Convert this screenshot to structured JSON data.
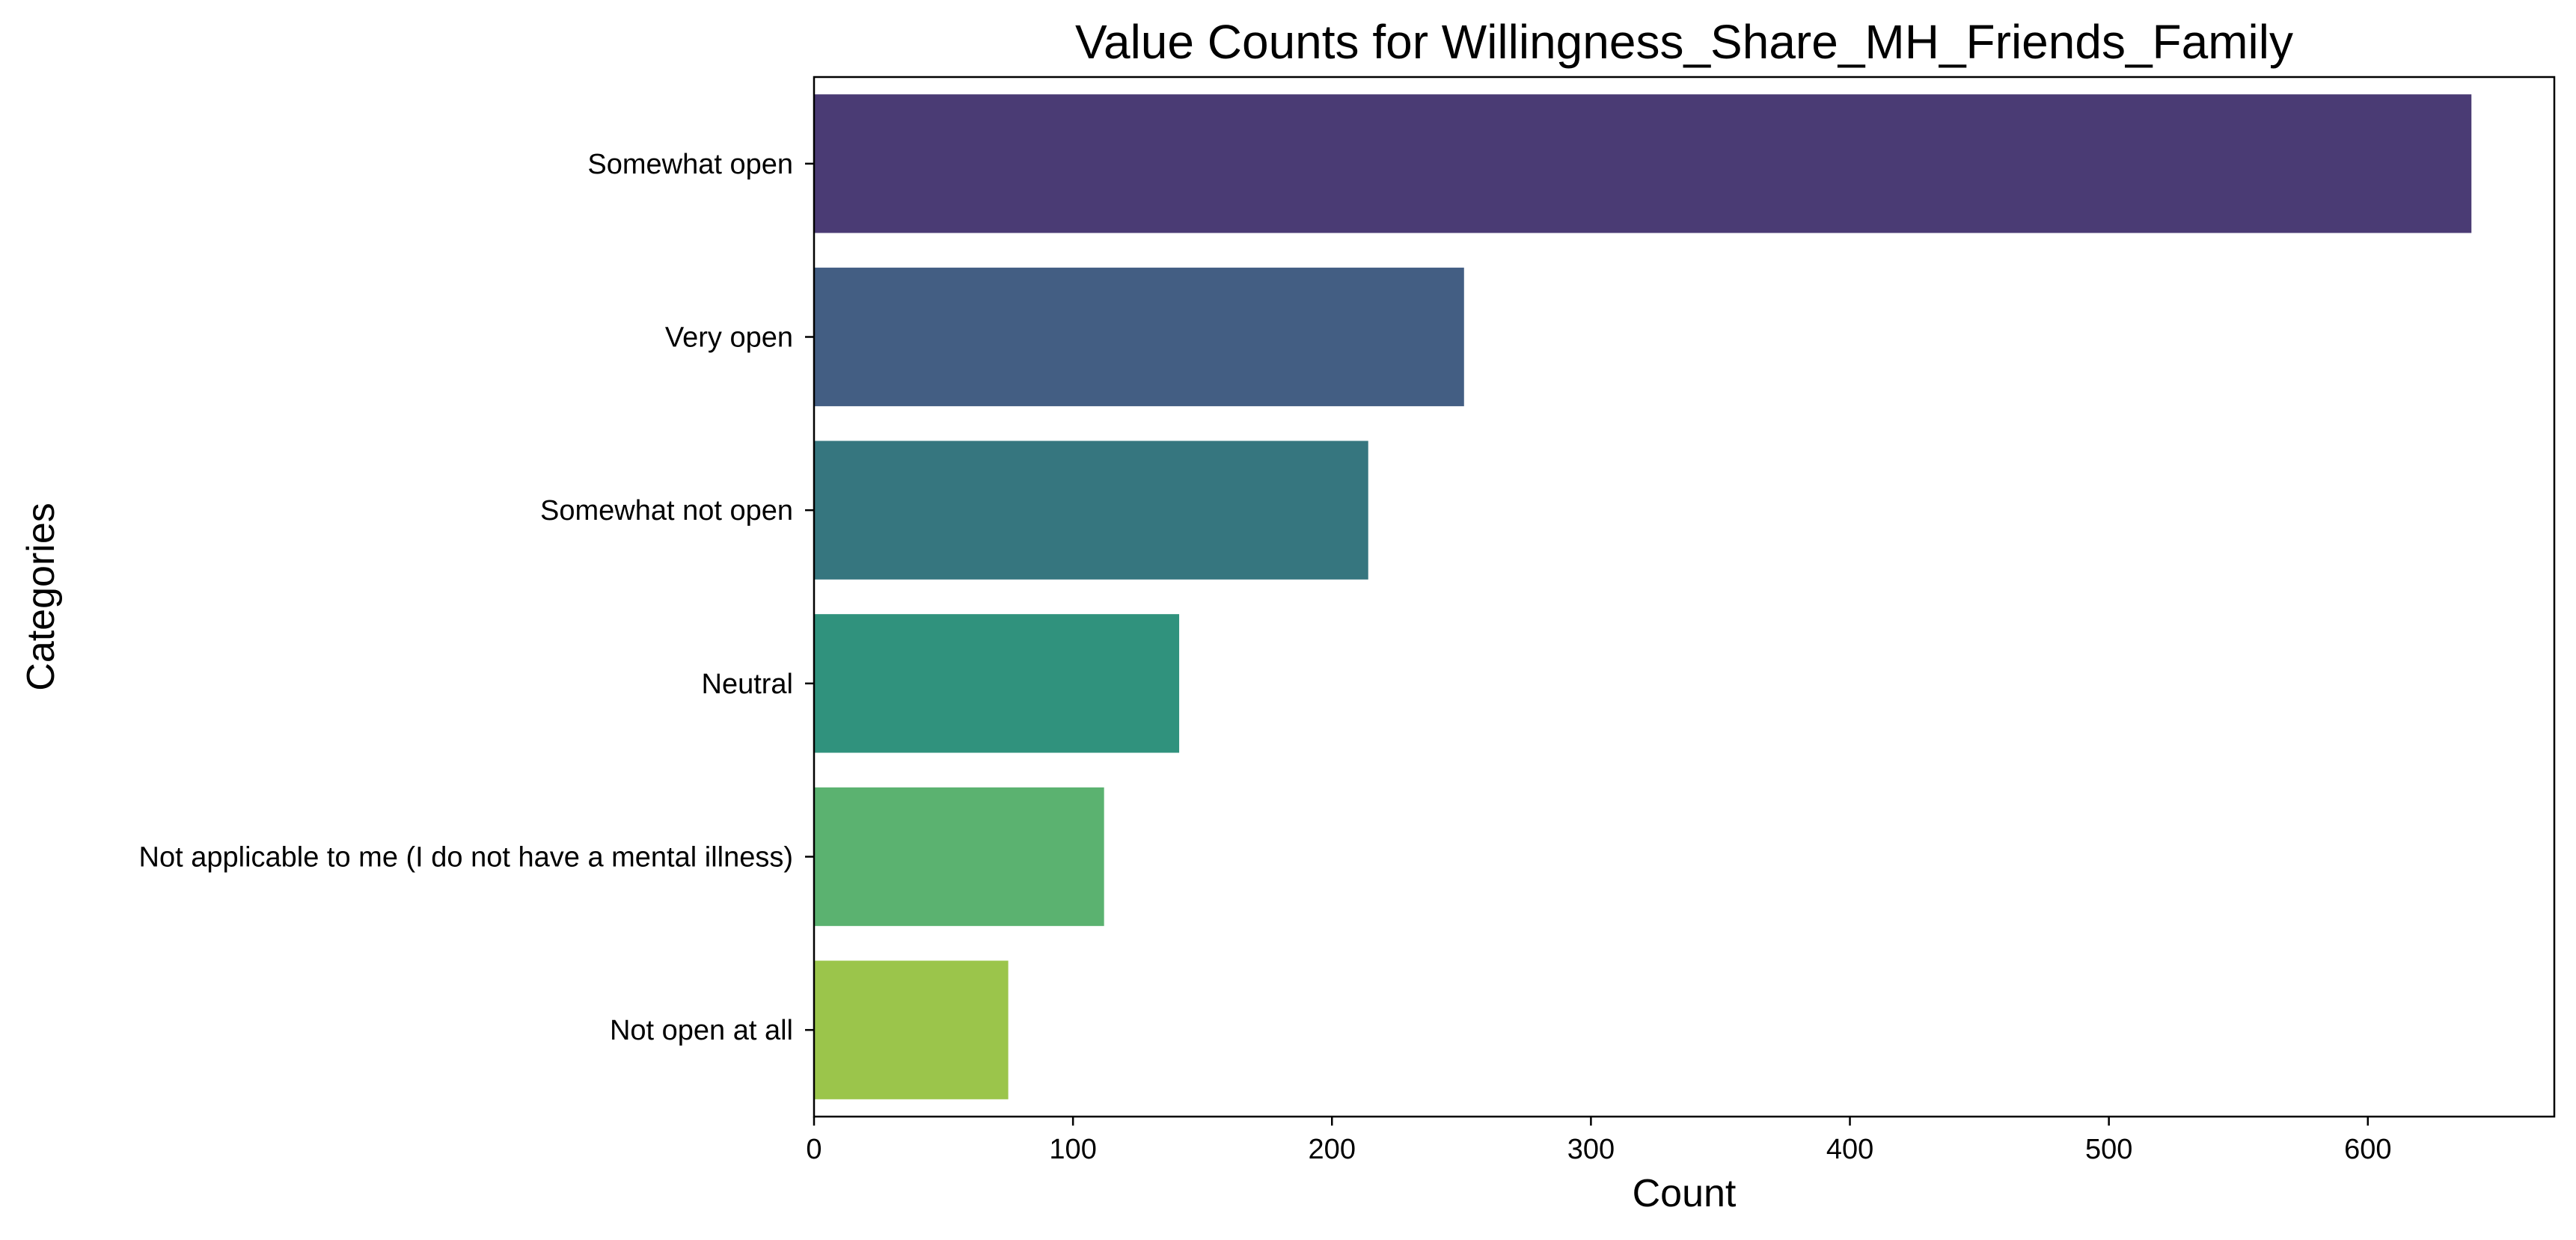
{
  "chart_data": {
    "type": "bar",
    "orientation": "horizontal",
    "title": "Value Counts for Willingness_Share_MH_Friends_Family",
    "xlabel": "Count",
    "ylabel": "Categories",
    "categories": [
      "Somewhat open",
      "Very open",
      "Somewhat not open",
      "Neutral",
      "Not applicable to me (I do not have a mental illness)",
      "Not open at all"
    ],
    "values": [
      640,
      251,
      214,
      141,
      112,
      75
    ],
    "colors": [
      "#4a3b74",
      "#435e83",
      "#36767f",
      "#30927d",
      "#5bb270",
      "#9bc54b"
    ],
    "xlim": [
      0,
      672
    ],
    "xticks": [
      0,
      100,
      200,
      300,
      400,
      500,
      600
    ],
    "grid": false,
    "legend": "none"
  }
}
